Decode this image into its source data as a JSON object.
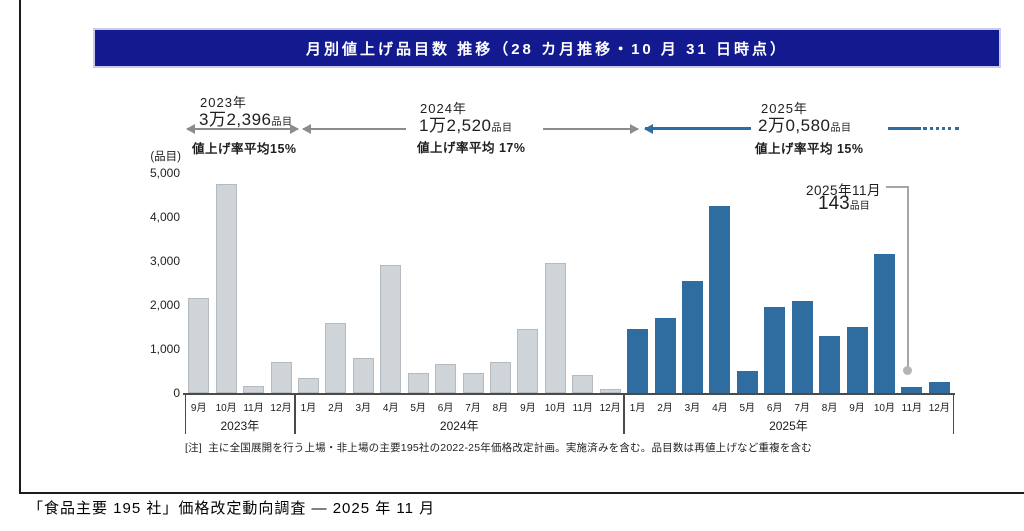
{
  "title_bar": {
    "text": "月別値上げ品目数 推移（28 カ月推移・10 月 31 日時点）"
  },
  "y_annotations": [
    {
      "year": "2023年",
      "count": "3万2,396",
      "unit": "品目",
      "avg": "値上げ率平均15%"
    },
    {
      "year": "2024年",
      "count": "1万2,520",
      "unit": "品目",
      "avg": "値上げ率平均 17%"
    },
    {
      "year": "2025年",
      "count": "2万0,580",
      "unit": "品目",
      "avg": "値上げ率平均 15%"
    }
  ],
  "callout": {
    "title": "2025年11月",
    "value": "143",
    "unit": "品目"
  },
  "note": {
    "label": "[注]",
    "text": "主に全国展開を行う上場・非上場の主要195社の2022-25年価格改定計画。実施済みを含む。品目数は再値上げなど重複を含む"
  },
  "caption": "「食品主要 195 社」価格改定動向調査 ― 2025 年 11 月",
  "colors": {
    "title_navy": "#131a90",
    "bar_gray": "#cfd4d9",
    "bar_gray_border": "#b4bac0",
    "bar_blue": "#2f6da0",
    "arrow_gray": "#8c8c8c",
    "arrow_blue": "#2f6da0"
  },
  "chart_data": {
    "type": "bar",
    "title": "月別値上げ品目数 推移（28 カ月推移・10 月 31 日時点）",
    "ylabel": "(品目)",
    "xlabel": "",
    "ylim": [
      0,
      5000
    ],
    "yticks": [
      "5,000",
      "4,000",
      "3,000",
      "2,000",
      "1,000",
      "0"
    ],
    "grid": false,
    "groups": [
      {
        "label": "2023年",
        "color": "#cfd4d9",
        "border": "#b4bac0",
        "months": [
          "9月",
          "10月",
          "11月",
          "12月"
        ],
        "values": [
          2150,
          4750,
          150,
          700
        ]
      },
      {
        "label": "2024年",
        "color": "#cfd4d9",
        "border": "#b4bac0",
        "months": [
          "1月",
          "2月",
          "3月",
          "4月",
          "5月",
          "6月",
          "7月",
          "8月",
          "9月",
          "10月",
          "11月",
          "12月"
        ],
        "values": [
          350,
          1600,
          800,
          2900,
          450,
          650,
          450,
          700,
          1450,
          2950,
          400,
          100
        ]
      },
      {
        "label": "2025年",
        "color": "#2f6da0",
        "border": "",
        "months": [
          "1月",
          "2月",
          "3月",
          "4月",
          "5月",
          "6月",
          "7月",
          "8月",
          "9月",
          "10月",
          "11月",
          "12月"
        ],
        "values": [
          1450,
          1700,
          2550,
          4250,
          500,
          1950,
          2100,
          1300,
          1500,
          3150,
          143,
          250
        ]
      }
    ],
    "highlight": {
      "group": "2025年",
      "month": "11月",
      "value": 143
    }
  }
}
